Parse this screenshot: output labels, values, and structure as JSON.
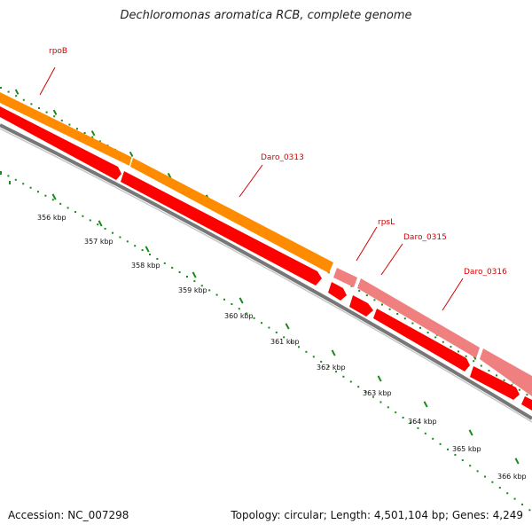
{
  "title": "Dechloromonas aromatica RCB, complete genome",
  "footer": {
    "accession": "Accession: NC_007298",
    "summary": "Topology: circular; Length: 4,501,104 bp; Genes: 4,249"
  },
  "genes": [
    {
      "name": "rpoB",
      "color": "#ff8c00"
    },
    {
      "name": "Daro_0313",
      "color": "#ff8c00"
    },
    {
      "name": "rpsL",
      "color": "#f08080"
    },
    {
      "name": "Daro_0315",
      "color": "#f08080"
    },
    {
      "name": "Daro_0316",
      "color": "#f08080"
    }
  ],
  "ticks": [
    "356 kbp",
    "357 kbp",
    "358 kbp",
    "359 kbp",
    "360 kbp",
    "361 kbp",
    "362 kbp",
    "363 kbp",
    "364 kbp",
    "365 kbp",
    "366 kbp"
  ],
  "colors": {
    "gene_label": "#d40000",
    "cds": "#ff0000",
    "backbone": "#777777",
    "gc_dots": "#1a8a1a"
  }
}
